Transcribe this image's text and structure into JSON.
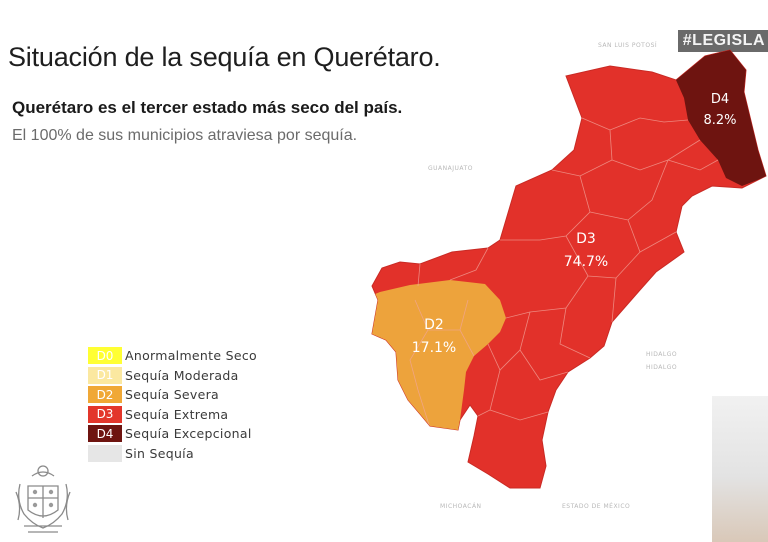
{
  "title": "Situación de la sequía en Querétaro.",
  "subtitle": "Querétaro es el tercer estado más seco del país.",
  "subtitle2": "El 100% de sus municipios atraviesa por sequía.",
  "hashtag": "#LEGISLA",
  "faint_labels": {
    "top": "SAN LUIS POTOSÍ",
    "left": "GUANAJUATO",
    "right": "HIDALGO",
    "right2": "HIDALGO",
    "bottom_left": "MICHOACÁN",
    "bottom_right": "ESTADO DE MÉXICO"
  },
  "regions": [
    {
      "code": "D4",
      "percent": "8.2%",
      "color": "#6e1410"
    },
    {
      "code": "D3",
      "percent": "74.7%",
      "color": "#e2312a"
    },
    {
      "code": "D2",
      "percent": "17.1%",
      "color": "#eda33c"
    }
  ],
  "legend": [
    {
      "code": "D0",
      "label": "Anormalmente Seco",
      "color": "#ffff33"
    },
    {
      "code": "D1",
      "label": "Sequía Moderada",
      "color": "#fbe8a0"
    },
    {
      "code": "D2",
      "label": "Sequía Severa",
      "color": "#f0a836"
    },
    {
      "code": "D3",
      "label": "Sequía Extrema",
      "color": "#e3362b"
    },
    {
      "code": "D4",
      "label": "Sequía Excepcional",
      "color": "#6e1410"
    },
    {
      "code": "",
      "label": "Sin Sequía",
      "color": "#e6e6e6"
    }
  ],
  "seal_icon": "coat-of-arms-icon"
}
